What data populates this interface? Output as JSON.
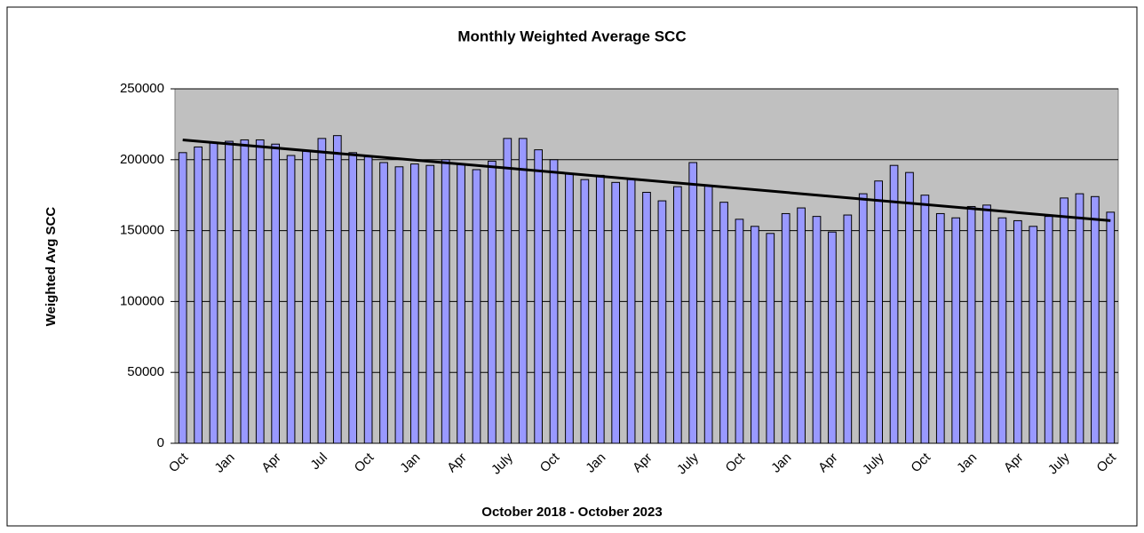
{
  "chart_data": {
    "type": "bar",
    "title": "Monthly Weighted Average SCC",
    "x_label": "October 2018 - October 2023",
    "y_label": "Weighted Avg SCC",
    "categories": [
      "Oct",
      null,
      null,
      "Jan",
      null,
      null,
      "Apr",
      null,
      null,
      "Jul",
      null,
      null,
      "Oct",
      null,
      null,
      "Jan",
      null,
      null,
      "Apr",
      null,
      null,
      "July",
      null,
      null,
      "Oct",
      null,
      null,
      "Jan",
      null,
      null,
      "Apr",
      null,
      null,
      "July",
      null,
      null,
      "Oct",
      null,
      null,
      "Jan",
      null,
      null,
      "Apr",
      null,
      null,
      "July",
      null,
      null,
      "Oct",
      null,
      null,
      "Jan",
      null,
      null,
      "Apr",
      null,
      null,
      "July",
      null,
      null,
      "Oct"
    ],
    "values": [
      205000,
      209000,
      212000,
      213000,
      214000,
      214000,
      211000,
      203000,
      206000,
      215000,
      217000,
      205000,
      202000,
      198000,
      195000,
      197000,
      196000,
      200000,
      197000,
      193000,
      199000,
      215000,
      215000,
      207000,
      200000,
      190000,
      186000,
      189000,
      184000,
      186000,
      177000,
      171000,
      181000,
      198000,
      182000,
      170000,
      158000,
      153000,
      148000,
      162000,
      166000,
      160000,
      149000,
      161000,
      176000,
      185000,
      196000,
      191000,
      175000,
      162000,
      159000,
      167000,
      168000,
      159000,
      157000,
      153000,
      160000,
      173000,
      176000,
      174000,
      163000
    ],
    "color": "#9999ff",
    "trend": [
      214000,
      157000
    ],
    "trend_color": "#000000",
    "ylim": [
      0,
      250000
    ],
    "yticks": [
      0,
      50000,
      100000,
      150000,
      200000,
      250000
    ],
    "grid": true,
    "plot_background": "#c0c0c0"
  }
}
